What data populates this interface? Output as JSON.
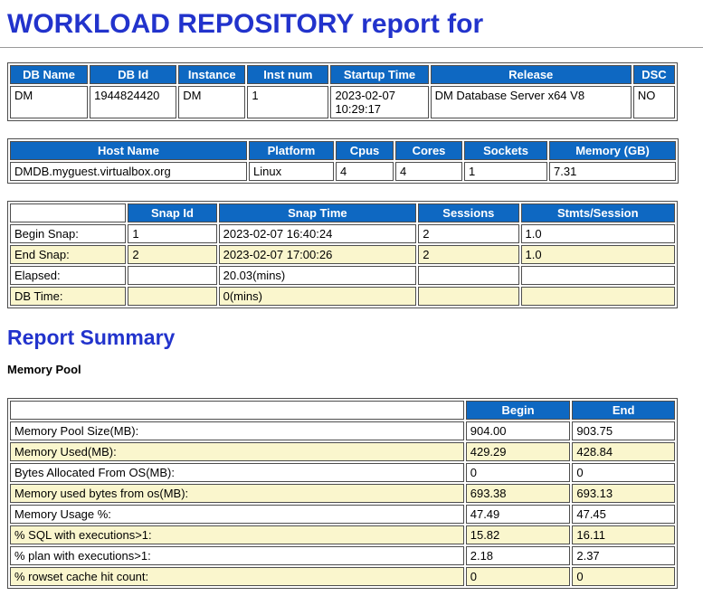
{
  "headings": {
    "title": "WORKLOAD REPOSITORY report for",
    "report_summary": "Report Summary",
    "memory_pool": "Memory Pool"
  },
  "colors": {
    "heading_blue": "#2233cc",
    "header_bg": "#0e68c2",
    "row_highlight": "#faf6cd",
    "border": "#4d4d4d"
  },
  "tables": {
    "db_info": {
      "headers": [
        "DB Name",
        "DB Id",
        "Instance",
        "Inst num",
        "Startup Time",
        "Release",
        "DSC"
      ],
      "rows": [
        [
          "DM",
          "1944824420",
          "DM",
          "1",
          "2023-02-07 10:29:17",
          "DM Database Server x64 V8",
          "NO"
        ]
      ]
    },
    "host_info": {
      "headers": [
        "Host Name",
        "Platform",
        "Cpus",
        "Cores",
        "Sockets",
        "Memory (GB)"
      ],
      "rows": [
        [
          "DMDB.myguest.virtualbox.org",
          "Linux",
          "4",
          "4",
          "1",
          "7.31"
        ]
      ]
    },
    "snap_info": {
      "row_label_col": true,
      "headers": [
        "",
        "Snap Id",
        "Snap Time",
        "Sessions",
        "Stmts/Session"
      ],
      "rows": [
        [
          "Begin Snap:",
          "1",
          "2023-02-07 16:40:24",
          "2",
          "1.0"
        ],
        [
          "End Snap:",
          "2",
          "2023-02-07 17:00:26",
          "2",
          "1.0"
        ],
        [
          "Elapsed:",
          "",
          "20.03(mins)",
          "",
          ""
        ],
        [
          "DB Time:",
          "",
          "0(mins)",
          "",
          ""
        ]
      ]
    },
    "memory_pool": {
      "row_label_col": true,
      "headers": [
        "",
        "Begin",
        "End"
      ],
      "rows": [
        [
          "Memory Pool Size(MB):",
          "904.00",
          "903.75"
        ],
        [
          "Memory Used(MB):",
          "429.29",
          "428.84"
        ],
        [
          "Bytes Allocated From OS(MB):",
          "0",
          "0"
        ],
        [
          "Memory used bytes from os(MB):",
          "693.38",
          "693.13"
        ],
        [
          "Memory Usage %:",
          "47.49",
          "47.45"
        ],
        [
          "% SQL with executions>1:",
          "15.82",
          "16.11"
        ],
        [
          "% plan with executions>1:",
          "2.18",
          "2.37"
        ],
        [
          "% rowset cache hit count:",
          "0",
          "0"
        ]
      ]
    }
  }
}
